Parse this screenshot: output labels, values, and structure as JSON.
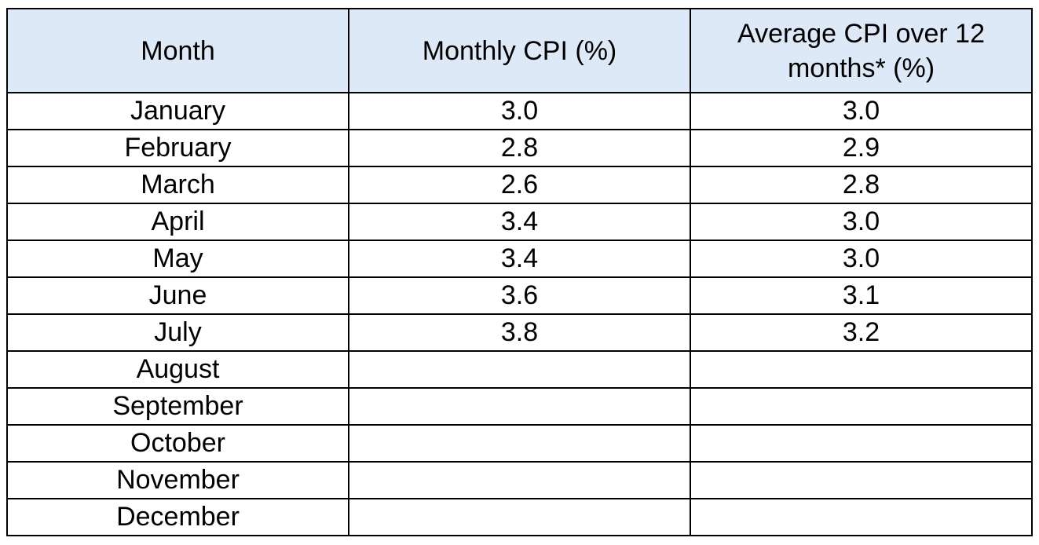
{
  "table": {
    "headers": [
      "Month",
      "Monthly CPI (%)",
      "Average CPI over 12 months* (%)"
    ],
    "rows": [
      {
        "month": "January",
        "monthly_cpi": "3.0",
        "average_cpi": "3.0"
      },
      {
        "month": "February",
        "monthly_cpi": "2.8",
        "average_cpi": "2.9"
      },
      {
        "month": "March",
        "monthly_cpi": "2.6",
        "average_cpi": "2.8"
      },
      {
        "month": "April",
        "monthly_cpi": "3.4",
        "average_cpi": "3.0"
      },
      {
        "month": "May",
        "monthly_cpi": "3.4",
        "average_cpi": "3.0"
      },
      {
        "month": "June",
        "monthly_cpi": "3.6",
        "average_cpi": "3.1"
      },
      {
        "month": "July",
        "monthly_cpi": "3.8",
        "average_cpi": "3.2"
      },
      {
        "month": "August",
        "monthly_cpi": "",
        "average_cpi": ""
      },
      {
        "month": "September",
        "monthly_cpi": "",
        "average_cpi": ""
      },
      {
        "month": "October",
        "monthly_cpi": "",
        "average_cpi": ""
      },
      {
        "month": "November",
        "monthly_cpi": "",
        "average_cpi": ""
      },
      {
        "month": "December",
        "monthly_cpi": "",
        "average_cpi": ""
      }
    ]
  },
  "colors": {
    "header_background": "#dde9f7",
    "border": "#000000"
  }
}
